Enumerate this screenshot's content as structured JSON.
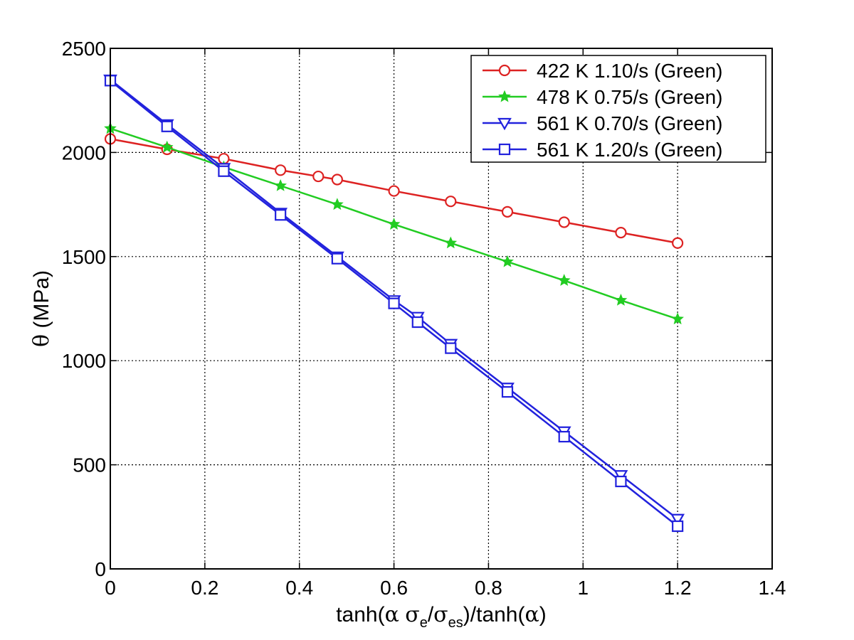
{
  "chart_data": {
    "type": "line",
    "title": "",
    "xlabel": {
      "prefix": "tanh(",
      "alpha": "α",
      "sigma_e_base": "σ",
      "sigma_e_sub": "e",
      "slash": "/",
      "sigma_es_base": "σ",
      "sigma_es_sub": "es",
      "suffix": ")/tanh(",
      "alpha2": "α",
      "end": ")"
    },
    "ylabel": {
      "symbol": "θ",
      "unit": " (MPa)"
    },
    "xlim": [
      0,
      1.4
    ],
    "ylim": [
      0,
      2500
    ],
    "xticks": [
      0,
      0.2,
      0.4,
      0.6,
      0.8,
      1.0,
      1.2,
      1.4
    ],
    "xtick_labels": [
      "0",
      "0.2",
      "0.4",
      "0.6",
      "0.8",
      "1",
      "1.2",
      "1.4"
    ],
    "yticks": [
      0,
      500,
      1000,
      1500,
      2000,
      2500
    ],
    "ytick_labels": [
      "0",
      "500",
      "1000",
      "1500",
      "2000",
      "2500"
    ],
    "grid": true,
    "legend_position": "top-right",
    "series": [
      {
        "name": "422 K 1.10/s (Green)",
        "color": "#dd2222",
        "marker": "circle",
        "x": [
          0,
          0.12,
          0.24,
          0.36,
          0.44,
          0.48,
          0.6,
          0.72,
          0.84,
          0.96,
          1.08,
          1.2
        ],
        "y": [
          2065,
          2015,
          1970,
          1915,
          1885,
          1870,
          1815,
          1765,
          1715,
          1665,
          1615,
          1565
        ]
      },
      {
        "name": "478 K 0.75/s (Green)",
        "color": "#22cc22",
        "marker": "star",
        "x": [
          0,
          0.12,
          0.24,
          0.36,
          0.48,
          0.6,
          0.72,
          0.84,
          0.96,
          1.08,
          1.2
        ],
        "y": [
          2115,
          2025,
          1930,
          1840,
          1750,
          1655,
          1565,
          1475,
          1385,
          1290,
          1200
        ]
      },
      {
        "name": "561 K 0.70/s (Green)",
        "color": "#2222dd",
        "marker": "triangle-down",
        "x": [
          0,
          0.12,
          0.24,
          0.36,
          0.48,
          0.6,
          0.65,
          0.72,
          0.84,
          0.96,
          1.08,
          1.2
        ],
        "y": [
          2350,
          2135,
          1925,
          1710,
          1500,
          1290,
          1210,
          1080,
          870,
          660,
          450,
          240
        ]
      },
      {
        "name": "561 K 1.20/s (Green)",
        "color": "#2222dd",
        "marker": "square",
        "x": [
          0,
          0.12,
          0.24,
          0.36,
          0.48,
          0.6,
          0.65,
          0.72,
          0.84,
          0.96,
          1.08,
          1.2
        ],
        "y": [
          2345,
          2125,
          1910,
          1700,
          1490,
          1275,
          1185,
          1060,
          850,
          635,
          420,
          205
        ]
      }
    ]
  }
}
